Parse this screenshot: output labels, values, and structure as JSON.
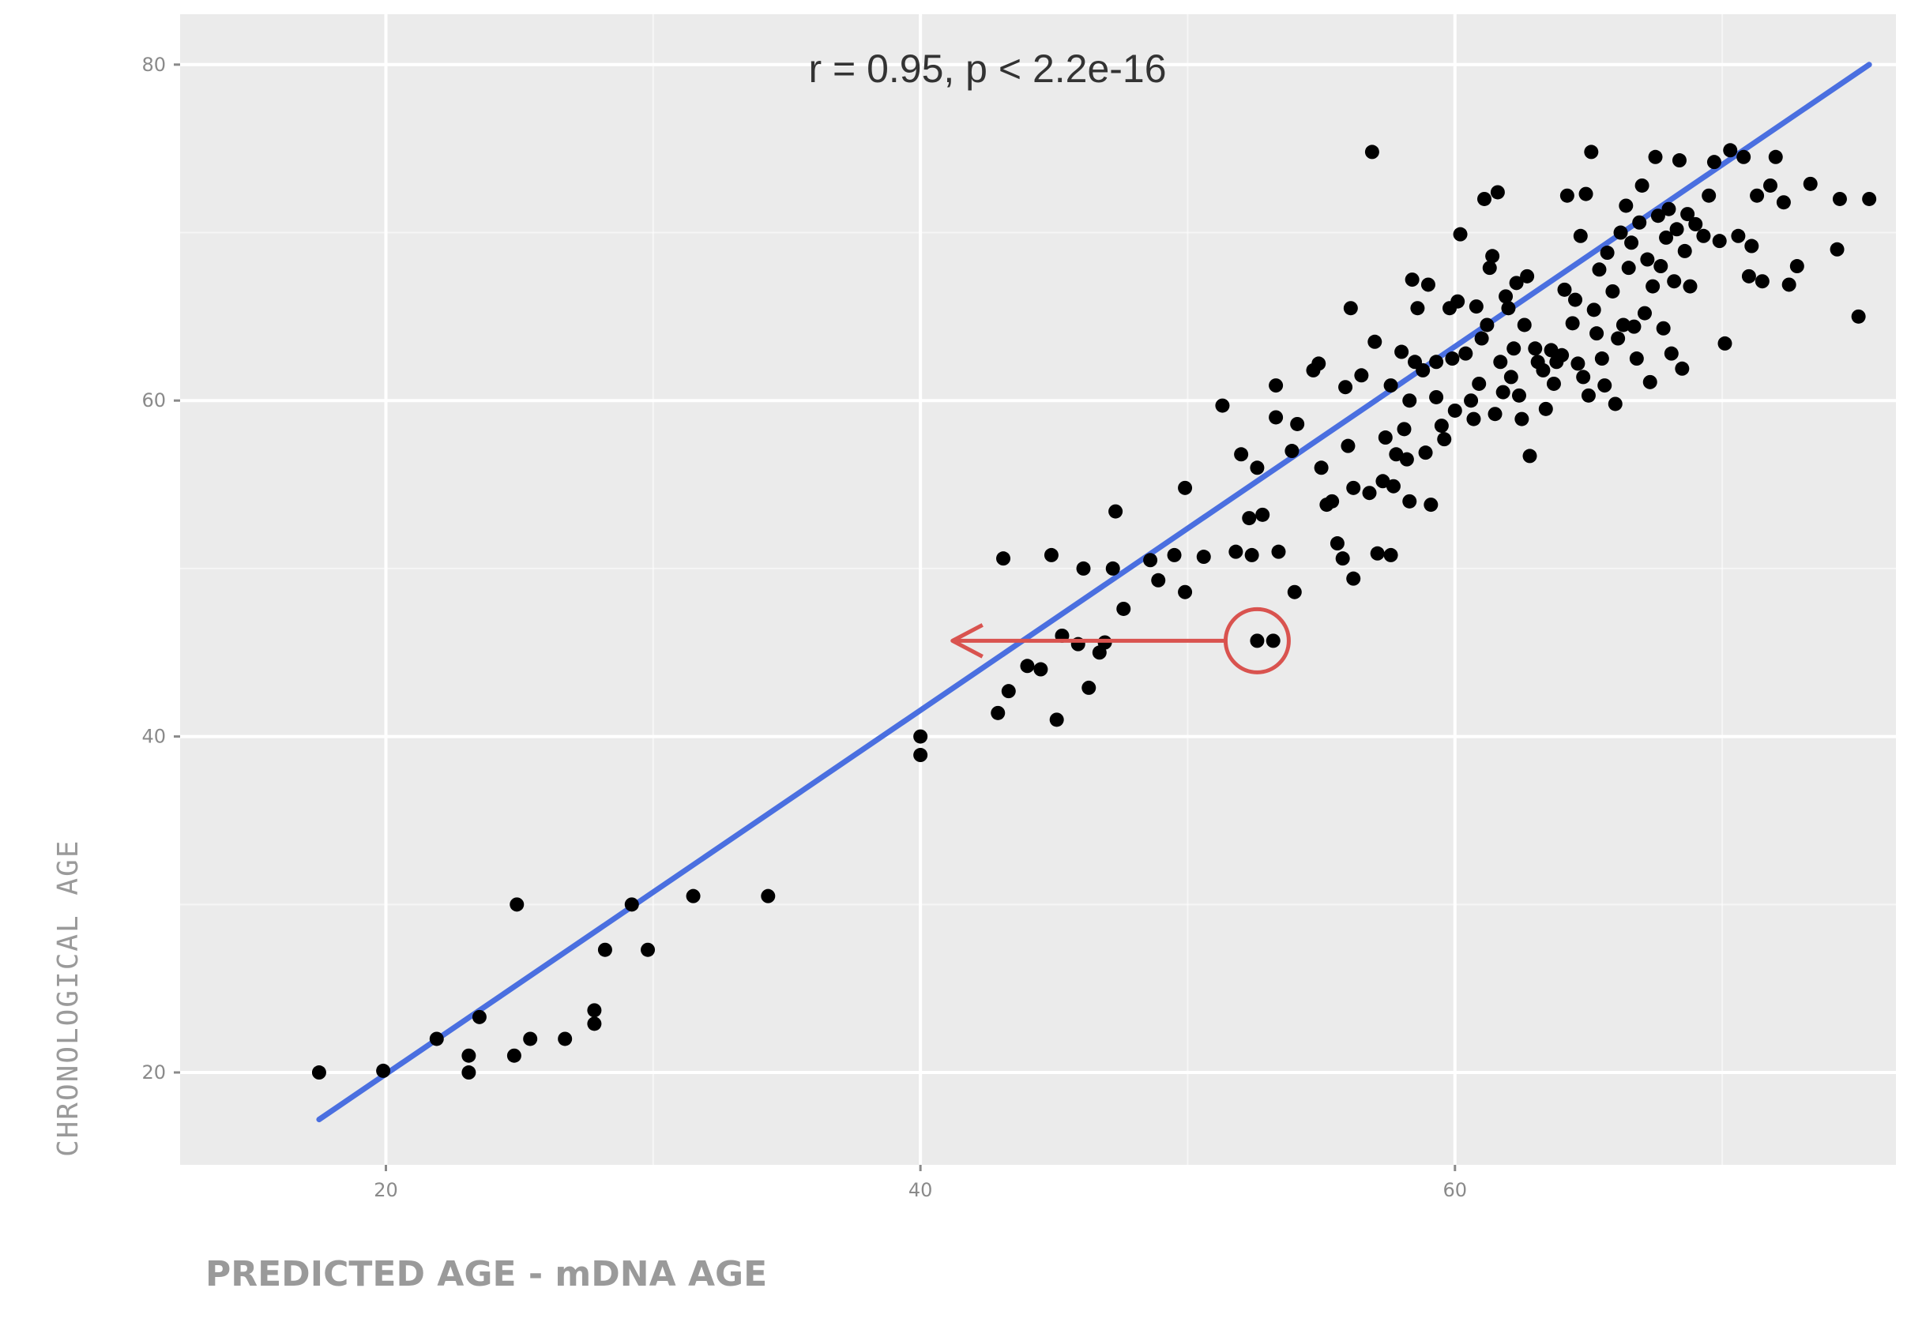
{
  "chart_data": {
    "type": "scatter",
    "title": "",
    "annotation": "r = 0.95, p < 2.2e-16",
    "xlabel": "PREDICTED AGE -  mDNA AGE",
    "ylabel": "CHRONOLOGICAL  AGE",
    "xlim": [
      12.3,
      76.5
    ],
    "ylim": [
      14.5,
      83.0
    ],
    "x_ticks": [
      20,
      40,
      60
    ],
    "y_ticks": [
      20,
      40,
      60,
      80
    ],
    "grid": true,
    "legend": "none",
    "colors": {
      "panel": "#ebebeb",
      "grid": "#ffffff",
      "points": "#000000",
      "fit_line": "#4a6fe0",
      "highlight": "#d9534f"
    },
    "fit_line": {
      "x": [
        17.5,
        75.5
      ],
      "y": [
        17.2,
        80.0
      ]
    },
    "highlight": {
      "x": 52.6,
      "y": 45.7,
      "arrow_to_x": 41.2
    },
    "points": [
      {
        "x": 17.5,
        "y": 20.0
      },
      {
        "x": 19.9,
        "y": 20.1
      },
      {
        "x": 21.9,
        "y": 22.0
      },
      {
        "x": 23.1,
        "y": 21.0
      },
      {
        "x": 23.1,
        "y": 20.0
      },
      {
        "x": 23.5,
        "y": 23.3
      },
      {
        "x": 24.8,
        "y": 21.0
      },
      {
        "x": 25.4,
        "y": 22.0
      },
      {
        "x": 24.9,
        "y": 30.0
      },
      {
        "x": 26.7,
        "y": 22.0
      },
      {
        "x": 27.8,
        "y": 22.9
      },
      {
        "x": 27.8,
        "y": 23.7
      },
      {
        "x": 28.2,
        "y": 27.3
      },
      {
        "x": 29.2,
        "y": 30.0
      },
      {
        "x": 29.8,
        "y": 27.3
      },
      {
        "x": 31.5,
        "y": 30.5
      },
      {
        "x": 34.3,
        "y": 30.5
      },
      {
        "x": 40.0,
        "y": 40.0
      },
      {
        "x": 40.0,
        "y": 38.9
      },
      {
        "x": 42.9,
        "y": 41.4
      },
      {
        "x": 43.1,
        "y": 50.6
      },
      {
        "x": 43.3,
        "y": 42.7
      },
      {
        "x": 44.0,
        "y": 44.2
      },
      {
        "x": 44.5,
        "y": 44.0
      },
      {
        "x": 44.9,
        "y": 50.8
      },
      {
        "x": 45.1,
        "y": 41.0
      },
      {
        "x": 45.3,
        "y": 46.0
      },
      {
        "x": 45.9,
        "y": 45.5
      },
      {
        "x": 46.1,
        "y": 50.0
      },
      {
        "x": 46.3,
        "y": 42.9
      },
      {
        "x": 46.7,
        "y": 45.0
      },
      {
        "x": 46.9,
        "y": 45.6
      },
      {
        "x": 47.2,
        "y": 50.0
      },
      {
        "x": 47.3,
        "y": 53.4
      },
      {
        "x": 47.6,
        "y": 47.6
      },
      {
        "x": 48.6,
        "y": 50.5
      },
      {
        "x": 48.9,
        "y": 49.3
      },
      {
        "x": 49.5,
        "y": 50.8
      },
      {
        "x": 49.9,
        "y": 48.6
      },
      {
        "x": 49.9,
        "y": 54.8
      },
      {
        "x": 50.6,
        "y": 50.7
      },
      {
        "x": 51.3,
        "y": 59.7
      },
      {
        "x": 51.8,
        "y": 51.0
      },
      {
        "x": 52.0,
        "y": 56.8
      },
      {
        "x": 52.3,
        "y": 53.0
      },
      {
        "x": 52.4,
        "y": 50.8
      },
      {
        "x": 52.6,
        "y": 56.0
      },
      {
        "x": 52.6,
        "y": 45.7
      },
      {
        "x": 52.8,
        "y": 53.2
      },
      {
        "x": 53.2,
        "y": 45.7
      },
      {
        "x": 53.3,
        "y": 60.9
      },
      {
        "x": 53.3,
        "y": 59.0
      },
      {
        "x": 53.4,
        "y": 51.0
      },
      {
        "x": 53.9,
        "y": 57.0
      },
      {
        "x": 54.0,
        "y": 48.6
      },
      {
        "x": 54.1,
        "y": 58.6
      },
      {
        "x": 54.7,
        "y": 61.8
      },
      {
        "x": 54.9,
        "y": 62.2
      },
      {
        "x": 55.0,
        "y": 56.0
      },
      {
        "x": 55.2,
        "y": 53.8
      },
      {
        "x": 55.4,
        "y": 54.0
      },
      {
        "x": 55.6,
        "y": 51.5
      },
      {
        "x": 55.8,
        "y": 50.6
      },
      {
        "x": 55.9,
        "y": 60.8
      },
      {
        "x": 56.0,
        "y": 57.3
      },
      {
        "x": 56.1,
        "y": 65.5
      },
      {
        "x": 56.2,
        "y": 49.4
      },
      {
        "x": 56.2,
        "y": 54.8
      },
      {
        "x": 56.5,
        "y": 61.5
      },
      {
        "x": 56.8,
        "y": 54.5
      },
      {
        "x": 56.9,
        "y": 74.8
      },
      {
        "x": 57.0,
        "y": 63.5
      },
      {
        "x": 57.1,
        "y": 50.9
      },
      {
        "x": 57.3,
        "y": 55.2
      },
      {
        "x": 57.4,
        "y": 57.8
      },
      {
        "x": 57.6,
        "y": 50.8
      },
      {
        "x": 57.6,
        "y": 60.9
      },
      {
        "x": 57.7,
        "y": 54.9
      },
      {
        "x": 57.8,
        "y": 56.8
      },
      {
        "x": 58.0,
        "y": 62.9
      },
      {
        "x": 58.1,
        "y": 58.3
      },
      {
        "x": 58.2,
        "y": 56.5
      },
      {
        "x": 58.3,
        "y": 54.0
      },
      {
        "x": 58.3,
        "y": 60.0
      },
      {
        "x": 58.4,
        "y": 67.2
      },
      {
        "x": 58.5,
        "y": 62.3
      },
      {
        "x": 58.6,
        "y": 65.5
      },
      {
        "x": 58.8,
        "y": 61.8
      },
      {
        "x": 58.9,
        "y": 56.9
      },
      {
        "x": 59.0,
        "y": 66.9
      },
      {
        "x": 59.1,
        "y": 53.8
      },
      {
        "x": 59.3,
        "y": 62.3
      },
      {
        "x": 59.3,
        "y": 60.2
      },
      {
        "x": 59.5,
        "y": 58.5
      },
      {
        "x": 59.6,
        "y": 57.7
      },
      {
        "x": 59.8,
        "y": 65.5
      },
      {
        "x": 59.9,
        "y": 62.5
      },
      {
        "x": 60.1,
        "y": 65.9
      },
      {
        "x": 60.0,
        "y": 59.4
      },
      {
        "x": 60.2,
        "y": 69.9
      },
      {
        "x": 60.4,
        "y": 62.8
      },
      {
        "x": 60.6,
        "y": 60.0
      },
      {
        "x": 60.7,
        "y": 58.9
      },
      {
        "x": 60.8,
        "y": 65.6
      },
      {
        "x": 60.9,
        "y": 61.0
      },
      {
        "x": 61.0,
        "y": 63.7
      },
      {
        "x": 61.1,
        "y": 72.0
      },
      {
        "x": 61.2,
        "y": 64.5
      },
      {
        "x": 61.3,
        "y": 67.9
      },
      {
        "x": 61.4,
        "y": 68.6
      },
      {
        "x": 61.5,
        "y": 59.2
      },
      {
        "x": 61.6,
        "y": 72.4
      },
      {
        "x": 61.7,
        "y": 62.3
      },
      {
        "x": 61.8,
        "y": 60.5
      },
      {
        "x": 61.9,
        "y": 66.2
      },
      {
        "x": 62.0,
        "y": 65.5
      },
      {
        "x": 62.1,
        "y": 61.4
      },
      {
        "x": 62.2,
        "y": 63.1
      },
      {
        "x": 62.3,
        "y": 67.0
      },
      {
        "x": 62.4,
        "y": 60.3
      },
      {
        "x": 62.5,
        "y": 58.9
      },
      {
        "x": 62.6,
        "y": 64.5
      },
      {
        "x": 62.7,
        "y": 67.4
      },
      {
        "x": 62.8,
        "y": 56.7
      },
      {
        "x": 63.0,
        "y": 63.1
      },
      {
        "x": 63.1,
        "y": 62.3
      },
      {
        "x": 63.3,
        "y": 61.8
      },
      {
        "x": 63.4,
        "y": 59.5
      },
      {
        "x": 63.6,
        "y": 63.0
      },
      {
        "x": 63.7,
        "y": 61.0
      },
      {
        "x": 63.8,
        "y": 62.3
      },
      {
        "x": 64.0,
        "y": 62.7
      },
      {
        "x": 64.1,
        "y": 66.6
      },
      {
        "x": 64.2,
        "y": 72.2
      },
      {
        "x": 64.4,
        "y": 64.6
      },
      {
        "x": 64.5,
        "y": 66.0
      },
      {
        "x": 64.6,
        "y": 62.2
      },
      {
        "x": 64.7,
        "y": 69.8
      },
      {
        "x": 64.8,
        "y": 61.4
      },
      {
        "x": 64.9,
        "y": 72.3
      },
      {
        "x": 65.0,
        "y": 60.3
      },
      {
        "x": 65.1,
        "y": 74.8
      },
      {
        "x": 65.2,
        "y": 65.4
      },
      {
        "x": 65.3,
        "y": 64.0
      },
      {
        "x": 65.4,
        "y": 67.8
      },
      {
        "x": 65.5,
        "y": 62.5
      },
      {
        "x": 65.6,
        "y": 60.9
      },
      {
        "x": 65.7,
        "y": 68.8
      },
      {
        "x": 65.9,
        "y": 66.5
      },
      {
        "x": 66.0,
        "y": 59.8
      },
      {
        "x": 66.1,
        "y": 63.7
      },
      {
        "x": 66.2,
        "y": 70.0
      },
      {
        "x": 66.3,
        "y": 64.5
      },
      {
        "x": 66.4,
        "y": 71.6
      },
      {
        "x": 66.5,
        "y": 67.9
      },
      {
        "x": 66.6,
        "y": 69.4
      },
      {
        "x": 66.7,
        "y": 64.4
      },
      {
        "x": 66.8,
        "y": 62.5
      },
      {
        "x": 66.9,
        "y": 70.6
      },
      {
        "x": 67.0,
        "y": 72.8
      },
      {
        "x": 67.1,
        "y": 65.2
      },
      {
        "x": 67.2,
        "y": 68.4
      },
      {
        "x": 67.3,
        "y": 61.1
      },
      {
        "x": 67.4,
        "y": 66.8
      },
      {
        "x": 67.5,
        "y": 74.5
      },
      {
        "x": 67.6,
        "y": 71.0
      },
      {
        "x": 67.7,
        "y": 68.0
      },
      {
        "x": 67.8,
        "y": 64.3
      },
      {
        "x": 67.9,
        "y": 69.7
      },
      {
        "x": 68.0,
        "y": 71.4
      },
      {
        "x": 68.1,
        "y": 62.8
      },
      {
        "x": 68.2,
        "y": 67.1
      },
      {
        "x": 68.3,
        "y": 70.2
      },
      {
        "x": 68.4,
        "y": 74.3
      },
      {
        "x": 68.5,
        "y": 61.9
      },
      {
        "x": 68.6,
        "y": 68.9
      },
      {
        "x": 68.7,
        "y": 71.1
      },
      {
        "x": 68.8,
        "y": 66.8
      },
      {
        "x": 69.0,
        "y": 70.5
      },
      {
        "x": 69.3,
        "y": 69.8
      },
      {
        "x": 69.5,
        "y": 72.2
      },
      {
        "x": 69.7,
        "y": 74.2
      },
      {
        "x": 69.9,
        "y": 69.5
      },
      {
        "x": 70.1,
        "y": 63.4
      },
      {
        "x": 70.3,
        "y": 74.9
      },
      {
        "x": 70.6,
        "y": 69.8
      },
      {
        "x": 70.8,
        "y": 74.5
      },
      {
        "x": 71.0,
        "y": 67.4
      },
      {
        "x": 71.1,
        "y": 69.2
      },
      {
        "x": 71.3,
        "y": 72.2
      },
      {
        "x": 71.5,
        "y": 67.1
      },
      {
        "x": 71.8,
        "y": 72.8
      },
      {
        "x": 72.0,
        "y": 74.5
      },
      {
        "x": 72.3,
        "y": 71.8
      },
      {
        "x": 72.5,
        "y": 66.9
      },
      {
        "x": 72.8,
        "y": 68.0
      },
      {
        "x": 73.3,
        "y": 72.9
      },
      {
        "x": 74.4,
        "y": 72.0
      },
      {
        "x": 74.3,
        "y": 69.0
      },
      {
        "x": 75.1,
        "y": 65.0
      },
      {
        "x": 75.5,
        "y": 72.0
      }
    ]
  }
}
